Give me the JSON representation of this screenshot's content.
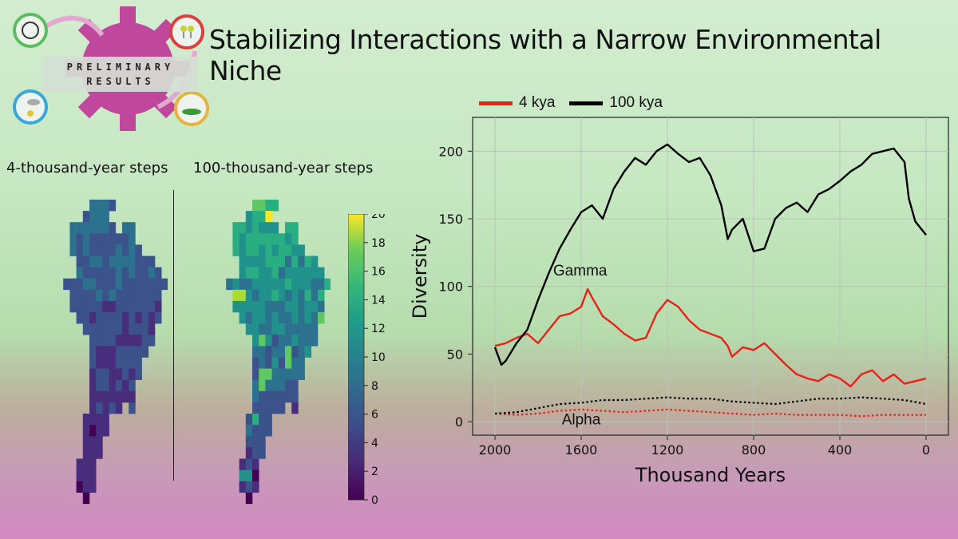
{
  "title": "Stabilizing Interactions with a Narrow Environmental Niche",
  "badge": {
    "line1": "PRELIMINARY",
    "line2": "RESULTS"
  },
  "maps": {
    "left_label": "4-thousand-year steps",
    "right_label": "100-thousand-year steps",
    "colorbar": {
      "min": 0,
      "max": 20,
      "ticks": [
        "0",
        "2",
        "4",
        "6",
        "8",
        "10",
        "12",
        "14",
        "16",
        "18",
        "20"
      ]
    },
    "rows": [
      "..........AAAA........",
      ".........AAAA.........",
      ".......AAAAAAA.AA.....",
      ".......AAAAAAAAAA.....",
      ".......AAAAAAAAAAA....",
      "........AAAAAAAAAAAA..",
      "........AAAAAAAAAAAAA.",
      "......AAAAAAAAAAAAAAAA",
      ".......AAAAAAAAAAAAAA.",
      ".......AAAAAAAAAAAAAA.",
      "........AAAAAAAAAAAAA.",
      ".........AAAAAAAAAAA..",
      "..........AAAAAAAAAA..",
      "..........AAAAAAAAA...",
      "..........AAAAAAAA....",
      "..........AAAAAAAA....",
      "..........AAAAAAA.....",
      "..........AAAAAAA.....",
      "..........AAAAA.A.....",
      ".........AAAA.........",
      ".........AAAA.........",
      ".........AAA..........",
      ".........AAA..........",
      "........AAA...........",
      "........AAA...........",
      "........AAA...........",
      ".........A............"
    ]
  },
  "chart_data": {
    "type": "line",
    "xlabel": "Thousand Years",
    "ylabel": "Diversity",
    "xlim": [
      2000,
      0
    ],
    "ylim": [
      -10,
      225
    ],
    "xticks": [
      2000,
      1600,
      1200,
      800,
      400,
      0
    ],
    "yticks": [
      0,
      50,
      100,
      150,
      200
    ],
    "grid": true,
    "legend": "top-left, above plot",
    "annotations": [
      {
        "text": "Gamma",
        "x": 1730,
        "y": 108
      },
      {
        "text": "Alpha",
        "x": 1690,
        "y": -2
      }
    ],
    "series": [
      {
        "name": "4 kya",
        "color": "#e8211a",
        "style": "solid",
        "x": [
          2000,
          1950,
          1900,
          1850,
          1800,
          1750,
          1700,
          1650,
          1600,
          1570,
          1550,
          1500,
          1450,
          1400,
          1350,
          1300,
          1250,
          1200,
          1150,
          1100,
          1050,
          1000,
          950,
          920,
          900,
          850,
          800,
          750,
          700,
          650,
          600,
          550,
          500,
          450,
          400,
          350,
          300,
          250,
          200,
          150,
          100,
          50,
          0
        ],
        "y": [
          56,
          58,
          62,
          65,
          58,
          68,
          78,
          80,
          85,
          98,
          92,
          78,
          72,
          65,
          60,
          62,
          80,
          90,
          85,
          75,
          68,
          65,
          62,
          56,
          48,
          55,
          53,
          58,
          50,
          42,
          35,
          32,
          30,
          35,
          32,
          26,
          35,
          38,
          30,
          35,
          28,
          30,
          32
        ]
      },
      {
        "name": "100 kya",
        "color": "#000000",
        "style": "solid",
        "x": [
          2000,
          1970,
          1950,
          1900,
          1850,
          1800,
          1750,
          1700,
          1650,
          1600,
          1550,
          1500,
          1450,
          1400,
          1350,
          1300,
          1250,
          1200,
          1150,
          1100,
          1050,
          1000,
          950,
          920,
          900,
          850,
          800,
          750,
          700,
          650,
          600,
          550,
          500,
          450,
          400,
          350,
          300,
          250,
          200,
          150,
          100,
          80,
          50,
          0
        ],
        "y": [
          55,
          42,
          45,
          58,
          68,
          90,
          110,
          128,
          142,
          155,
          160,
          150,
          172,
          185,
          195,
          190,
          200,
          205,
          198,
          192,
          195,
          182,
          160,
          135,
          142,
          150,
          126,
          128,
          150,
          158,
          162,
          155,
          168,
          172,
          178,
          185,
          190,
          198,
          200,
          202,
          192,
          165,
          148,
          138
        ]
      },
      {
        "name": "",
        "color": "#e8211a",
        "style": "dotted",
        "x": [
          2000,
          1900,
          1800,
          1700,
          1600,
          1500,
          1400,
          1300,
          1200,
          1100,
          1000,
          900,
          800,
          700,
          600,
          500,
          400,
          300,
          200,
          100,
          0
        ],
        "y": [
          6,
          5,
          6,
          8,
          9,
          8,
          7,
          8,
          9,
          8,
          7,
          6,
          5,
          6,
          5,
          5,
          5,
          4,
          5,
          5,
          5
        ]
      },
      {
        "name": "",
        "color": "#000000",
        "style": "dotted",
        "x": [
          2000,
          1900,
          1800,
          1700,
          1600,
          1500,
          1400,
          1300,
          1200,
          1100,
          1000,
          900,
          800,
          700,
          600,
          500,
          400,
          300,
          200,
          100,
          0
        ],
        "y": [
          6,
          7,
          10,
          13,
          14,
          16,
          16,
          17,
          18,
          17,
          17,
          15,
          14,
          13,
          15,
          17,
          17,
          18,
          17,
          16,
          13
        ]
      }
    ]
  }
}
